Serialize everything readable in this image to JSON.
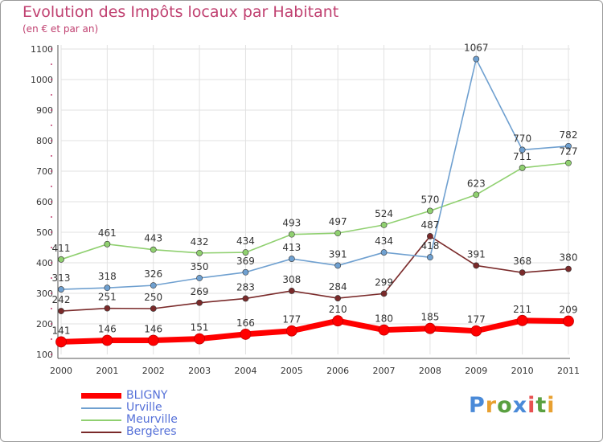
{
  "title": "Evolution des Impôts locaux par Habitant",
  "subtitle": "(en € et par an)",
  "brand": {
    "text": "Proxiti",
    "colors": [
      "#4a8ad8",
      "#e8a030",
      "#5aa040",
      "#4a8ad8",
      "#e85050",
      "#5aa040",
      "#e8a030"
    ]
  },
  "chart_data": {
    "type": "line",
    "x": [
      "2000",
      "2001",
      "2002",
      "2003",
      "2004",
      "2005",
      "2006",
      "2007",
      "2008",
      "2009",
      "2010",
      "2011"
    ],
    "yticks": [
      "100",
      "200",
      "300",
      "400",
      "500",
      "600",
      "700",
      "800",
      "900",
      "1000",
      "1100"
    ],
    "ylim": [
      100,
      1100
    ],
    "grid": true,
    "legend_position": "bottom-left",
    "series": [
      {
        "name": "BLIGNY",
        "color": "#ff0000",
        "values": [
          141,
          146,
          146,
          151,
          166,
          177,
          210,
          180,
          185,
          177,
          211,
          209
        ],
        "labels": [
          "141",
          "146",
          "146",
          "151",
          "166",
          "177",
          "210",
          "180",
          "185",
          "177",
          "211",
          "209"
        ]
      },
      {
        "name": "Urville",
        "color": "#6fa0d0",
        "values": [
          313,
          318,
          326,
          350,
          369,
          413,
          391,
          434,
          418,
          1067,
          770,
          782
        ],
        "labels": [
          "313",
          "318",
          "326",
          "350",
          "369",
          "413",
          "391",
          "434",
          "418",
          "1067",
          "770",
          "782"
        ]
      },
      {
        "name": "Meurville",
        "color": "#90d070",
        "values": [
          411,
          461,
          443,
          432,
          434,
          493,
          497,
          524,
          570,
          623,
          711,
          727
        ],
        "labels": [
          "411",
          "461",
          "443",
          "432",
          "434",
          "493",
          "497",
          "524",
          "570",
          "623",
          "711",
          "727"
        ]
      },
      {
        "name": "Bergères",
        "color": "#7a2a2a",
        "values": [
          242,
          251,
          250,
          269,
          283,
          308,
          284,
          299,
          487,
          391,
          368,
          380
        ],
        "labels": [
          "242",
          "251",
          "250",
          "269",
          "283",
          "308",
          "284",
          "299",
          "487",
          "391",
          "368",
          "380"
        ]
      }
    ]
  }
}
